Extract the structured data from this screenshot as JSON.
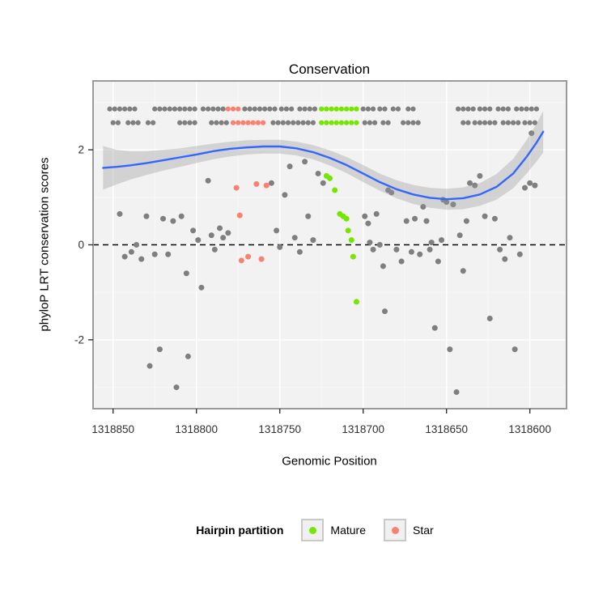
{
  "chart_data": {
    "type": "scatter",
    "title": "Conservation",
    "xlabel": "Genomic Position",
    "ylabel": "phyloP LRT conservation scores",
    "x_reversed": true,
    "x_domain": [
      1318862,
      1318578
    ],
    "y_domain": [
      -3.45,
      3.45
    ],
    "x_ticks": [
      1318850,
      1318800,
      1318750,
      1318700,
      1318650,
      1318600
    ],
    "x_minor_ticks": [
      1318825,
      1318775,
      1318725,
      1318675,
      1318625
    ],
    "y_ticks": [
      -2,
      0,
      2
    ],
    "y_minor_ticks": [
      -3,
      -1,
      1,
      3
    ],
    "hline": 0,
    "colors": {
      "panel_bg": "#f2f2f2",
      "grid_major": "#ffffff",
      "grid_minor": "#f9f9f9",
      "panel_border": "#9a9a9a",
      "axis_text": "#303030",
      "tick_mark": "#333333",
      "point_gray": "#7f7f7f",
      "mature_green": "#74E600",
      "star_salmon": "#FA8072",
      "smooth_line": "#3366FF",
      "band": "#999999",
      "band_opacity": 0.35,
      "hline_color": "#000000"
    },
    "strips": [
      {
        "y": 2.86,
        "segments": [
          {
            "from": 1318852,
            "to": 1318837,
            "color": "gray"
          },
          {
            "from": 1318825,
            "to": 1318800,
            "color": "gray"
          },
          {
            "from": 1318796,
            "to": 1318789,
            "color": "gray"
          },
          {
            "from": 1318787,
            "to": 1318784,
            "color": "gray"
          },
          {
            "from": 1318781,
            "to": 1318773,
            "color": "salmon"
          },
          {
            "from": 1318771,
            "to": 1318768,
            "color": "gray"
          },
          {
            "from": 1318765,
            "to": 1318752,
            "color": "gray"
          },
          {
            "from": 1318749,
            "to": 1318741,
            "color": "gray"
          },
          {
            "from": 1318738,
            "to": 1318735,
            "color": "gray"
          },
          {
            "from": 1318732,
            "to": 1318728,
            "color": "gray"
          },
          {
            "from": 1318725,
            "to": 1318704,
            "color": "green"
          },
          {
            "from": 1318700,
            "to": 1318694,
            "color": "gray"
          },
          {
            "from": 1318690,
            "to": 1318686,
            "color": "gray"
          },
          {
            "from": 1318682,
            "to": 1318679,
            "color": "gray"
          },
          {
            "from": 1318673,
            "to": 1318668,
            "color": "gray"
          },
          {
            "from": 1318643,
            "to": 1318634,
            "color": "gray"
          },
          {
            "from": 1318630,
            "to": 1318622,
            "color": "gray"
          },
          {
            "from": 1318619,
            "to": 1318611,
            "color": "gray"
          },
          {
            "from": 1318608,
            "to": 1318598,
            "color": "gray"
          },
          {
            "from": 1318596,
            "to": 1318594,
            "color": "gray"
          }
        ]
      },
      {
        "y": 2.57,
        "segments": [
          {
            "from": 1318850,
            "to": 1318846,
            "color": "gray"
          },
          {
            "from": 1318841,
            "to": 1318833,
            "color": "gray"
          },
          {
            "from": 1318829,
            "to": 1318826,
            "color": "gray"
          },
          {
            "from": 1318810,
            "to": 1318801,
            "color": "gray"
          },
          {
            "from": 1318791,
            "to": 1318780,
            "color": "gray"
          },
          {
            "from": 1318778,
            "to": 1318758,
            "color": "salmon"
          },
          {
            "from": 1318754,
            "to": 1318742,
            "color": "gray"
          },
          {
            "from": 1318739,
            "to": 1318729,
            "color": "gray"
          },
          {
            "from": 1318725,
            "to": 1318703,
            "color": "green"
          },
          {
            "from": 1318699,
            "to": 1318692,
            "color": "gray"
          },
          {
            "from": 1318688,
            "to": 1318684,
            "color": "gray"
          },
          {
            "from": 1318676,
            "to": 1318666,
            "color": "gray"
          },
          {
            "from": 1318640,
            "to": 1318636,
            "color": "gray"
          },
          {
            "from": 1318633,
            "to": 1318619,
            "color": "gray"
          },
          {
            "from": 1318616,
            "to": 1318607,
            "color": "gray"
          },
          {
            "from": 1318603,
            "to": 1318597,
            "color": "gray"
          }
        ]
      }
    ],
    "series": {
      "gray": [
        [
          1318846,
          0.65
        ],
        [
          1318843,
          -0.25
        ],
        [
          1318839,
          -0.15
        ],
        [
          1318836,
          0.0
        ],
        [
          1318833,
          -0.3
        ],
        [
          1318830,
          0.6
        ],
        [
          1318828,
          -2.55
        ],
        [
          1318825,
          -0.2
        ],
        [
          1318822,
          -2.2
        ],
        [
          1318820,
          0.55
        ],
        [
          1318817,
          -0.2
        ],
        [
          1318814,
          0.5
        ],
        [
          1318812,
          -3.0
        ],
        [
          1318809,
          0.6
        ],
        [
          1318806,
          -0.6
        ],
        [
          1318805,
          -2.35
        ],
        [
          1318802,
          0.3
        ],
        [
          1318799,
          0.1
        ],
        [
          1318797,
          -0.9
        ],
        [
          1318793,
          1.35
        ],
        [
          1318791,
          0.2
        ],
        [
          1318789,
          -0.1
        ],
        [
          1318786,
          0.35
        ],
        [
          1318784,
          0.15
        ],
        [
          1318781,
          0.25
        ],
        [
          1318755,
          1.3
        ],
        [
          1318752,
          0.3
        ],
        [
          1318750,
          -0.05
        ],
        [
          1318747,
          1.05
        ],
        [
          1318744,
          1.65
        ],
        [
          1318741,
          0.15
        ],
        [
          1318738,
          -0.15
        ],
        [
          1318735,
          1.75
        ],
        [
          1318733,
          0.6
        ],
        [
          1318730,
          0.1
        ],
        [
          1318727,
          1.5
        ],
        [
          1318724,
          1.3
        ],
        [
          1318699,
          0.6
        ],
        [
          1318697,
          0.45
        ],
        [
          1318696,
          0.05
        ],
        [
          1318694,
          -0.1
        ],
        [
          1318692,
          0.65
        ],
        [
          1318690,
          0.0
        ],
        [
          1318688,
          -0.45
        ],
        [
          1318687,
          -1.4
        ],
        [
          1318685,
          1.15
        ],
        [
          1318683,
          1.1
        ],
        [
          1318680,
          -0.1
        ],
        [
          1318677,
          -0.35
        ],
        [
          1318674,
          0.5
        ],
        [
          1318671,
          -0.15
        ],
        [
          1318669,
          0.55
        ],
        [
          1318666,
          -0.2
        ],
        [
          1318664,
          0.8
        ],
        [
          1318662,
          0.5
        ],
        [
          1318660,
          -0.1
        ],
        [
          1318659,
          0.05
        ],
        [
          1318657,
          -1.75
        ],
        [
          1318655,
          -0.35
        ],
        [
          1318653,
          0.1
        ],
        [
          1318652,
          0.95
        ],
        [
          1318650,
          0.9
        ],
        [
          1318648,
          -2.2
        ],
        [
          1318646,
          0.85
        ],
        [
          1318644,
          -3.1
        ],
        [
          1318642,
          0.2
        ],
        [
          1318640,
          -0.55
        ],
        [
          1318638,
          0.5
        ],
        [
          1318636,
          1.3
        ],
        [
          1318633,
          1.25
        ],
        [
          1318630,
          1.45
        ],
        [
          1318627,
          0.6
        ],
        [
          1318624,
          -1.55
        ],
        [
          1318621,
          0.55
        ],
        [
          1318618,
          -0.1
        ],
        [
          1318615,
          -0.3
        ],
        [
          1318612,
          0.15
        ],
        [
          1318609,
          -2.2
        ],
        [
          1318606,
          -0.2
        ],
        [
          1318603,
          1.2
        ],
        [
          1318600,
          1.3
        ],
        [
          1318599,
          2.35
        ],
        [
          1318597,
          1.25
        ]
      ],
      "mature": [
        [
          1318722,
          1.45
        ],
        [
          1318720,
          1.4
        ],
        [
          1318717,
          1.15
        ],
        [
          1318714,
          0.65
        ],
        [
          1318712,
          0.6
        ],
        [
          1318710,
          0.55
        ],
        [
          1318709,
          0.3
        ],
        [
          1318707,
          0.1
        ],
        [
          1318706,
          -0.25
        ],
        [
          1318704,
          -1.2
        ]
      ],
      "star": [
        [
          1318776,
          1.2
        ],
        [
          1318774,
          0.62
        ],
        [
          1318773,
          -0.33
        ],
        [
          1318769,
          -0.25
        ],
        [
          1318764,
          1.28
        ],
        [
          1318761,
          -0.3
        ],
        [
          1318758,
          1.25
        ]
      ]
    },
    "smooth": {
      "line": [
        [
          1318856,
          1.62
        ],
        [
          1318848,
          1.64
        ],
        [
          1318840,
          1.67
        ],
        [
          1318830,
          1.72
        ],
        [
          1318820,
          1.78
        ],
        [
          1318810,
          1.84
        ],
        [
          1318800,
          1.9
        ],
        [
          1318790,
          1.97
        ],
        [
          1318780,
          2.02
        ],
        [
          1318770,
          2.05
        ],
        [
          1318760,
          2.07
        ],
        [
          1318750,
          2.07
        ],
        [
          1318740,
          2.03
        ],
        [
          1318730,
          1.95
        ],
        [
          1318720,
          1.83
        ],
        [
          1318710,
          1.68
        ],
        [
          1318700,
          1.5
        ],
        [
          1318690,
          1.32
        ],
        [
          1318680,
          1.17
        ],
        [
          1318670,
          1.06
        ],
        [
          1318660,
          0.99
        ],
        [
          1318650,
          0.96
        ],
        [
          1318640,
          0.98
        ],
        [
          1318630,
          1.06
        ],
        [
          1318620,
          1.22
        ],
        [
          1318610,
          1.5
        ],
        [
          1318602,
          1.85
        ],
        [
          1318596,
          2.15
        ],
        [
          1318592,
          2.38
        ]
      ],
      "band": [
        [
          1318856,
          2.08,
          1.16
        ],
        [
          1318848,
          2.0,
          1.27
        ],
        [
          1318840,
          1.97,
          1.37
        ],
        [
          1318830,
          1.97,
          1.47
        ],
        [
          1318820,
          2.0,
          1.56
        ],
        [
          1318810,
          2.03,
          1.64
        ],
        [
          1318800,
          2.08,
          1.72
        ],
        [
          1318790,
          2.13,
          1.8
        ],
        [
          1318780,
          2.17,
          1.86
        ],
        [
          1318770,
          2.2,
          1.9
        ],
        [
          1318760,
          2.21,
          1.92
        ],
        [
          1318750,
          2.21,
          1.92
        ],
        [
          1318740,
          2.17,
          1.88
        ],
        [
          1318730,
          2.1,
          1.8
        ],
        [
          1318720,
          1.99,
          1.67
        ],
        [
          1318710,
          1.85,
          1.51
        ],
        [
          1318700,
          1.68,
          1.32
        ],
        [
          1318690,
          1.5,
          1.14
        ],
        [
          1318680,
          1.36,
          0.98
        ],
        [
          1318670,
          1.26,
          0.86
        ],
        [
          1318660,
          1.2,
          0.78
        ],
        [
          1318650,
          1.18,
          0.74
        ],
        [
          1318640,
          1.21,
          0.75
        ],
        [
          1318630,
          1.3,
          0.82
        ],
        [
          1318620,
          1.49,
          0.95
        ],
        [
          1318610,
          1.81,
          1.19
        ],
        [
          1318602,
          2.2,
          1.5
        ],
        [
          1318596,
          2.55,
          1.75
        ],
        [
          1318592,
          2.82,
          1.94
        ]
      ]
    }
  },
  "legend": {
    "title": "Hairpin partition",
    "items": [
      {
        "label": "Mature",
        "color_key": "green"
      },
      {
        "label": "Star",
        "color_key": "salmon"
      }
    ]
  }
}
